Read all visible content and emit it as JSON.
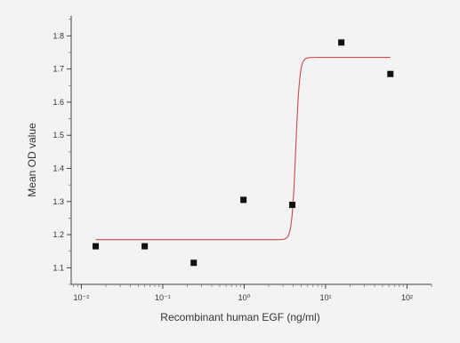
{
  "chart_data": {
    "type": "scatter",
    "title": "",
    "xlabel": "Recombinant human EGF (ng/ml)",
    "ylabel": "Mean OD value",
    "x_scale": "log",
    "xlim": [
      0.0075,
      200
    ],
    "ylim": [
      1.05,
      1.86
    ],
    "x_ticks": [
      {
        "value": 0.01,
        "label": "10⁻²"
      },
      {
        "value": 0.1,
        "label": "10⁻¹"
      },
      {
        "value": 1,
        "label": "10⁰"
      },
      {
        "value": 10,
        "label": "10¹"
      },
      {
        "value": 100,
        "label": "10²"
      }
    ],
    "y_ticks": [
      {
        "value": 1.1,
        "label": "1.1"
      },
      {
        "value": 1.2,
        "label": "1.2"
      },
      {
        "value": 1.3,
        "label": "1.3"
      },
      {
        "value": 1.4,
        "label": "1.4"
      },
      {
        "value": 1.5,
        "label": "1.5"
      },
      {
        "value": 1.6,
        "label": "1.6"
      },
      {
        "value": 1.7,
        "label": "1.7"
      },
      {
        "value": 1.8,
        "label": "1.8"
      }
    ],
    "grid": false,
    "legend": "none",
    "series": [
      {
        "kind": "points",
        "color": "#111111",
        "marker": "square",
        "points": [
          {
            "x": 0.015,
            "y": 1.165
          },
          {
            "x": 0.06,
            "y": 1.165
          },
          {
            "x": 0.24,
            "y": 1.115
          },
          {
            "x": 0.98,
            "y": 1.305
          },
          {
            "x": 3.9,
            "y": 1.29
          },
          {
            "x": 15.6,
            "y": 1.78
          },
          {
            "x": 62.5,
            "y": 1.685
          }
        ]
      },
      {
        "kind": "fit",
        "color": "#d04848",
        "model": "logistic",
        "bottom": 1.185,
        "top": 1.735,
        "x0": 4.3,
        "from": 0.015,
        "to": 62.5
      }
    ]
  }
}
